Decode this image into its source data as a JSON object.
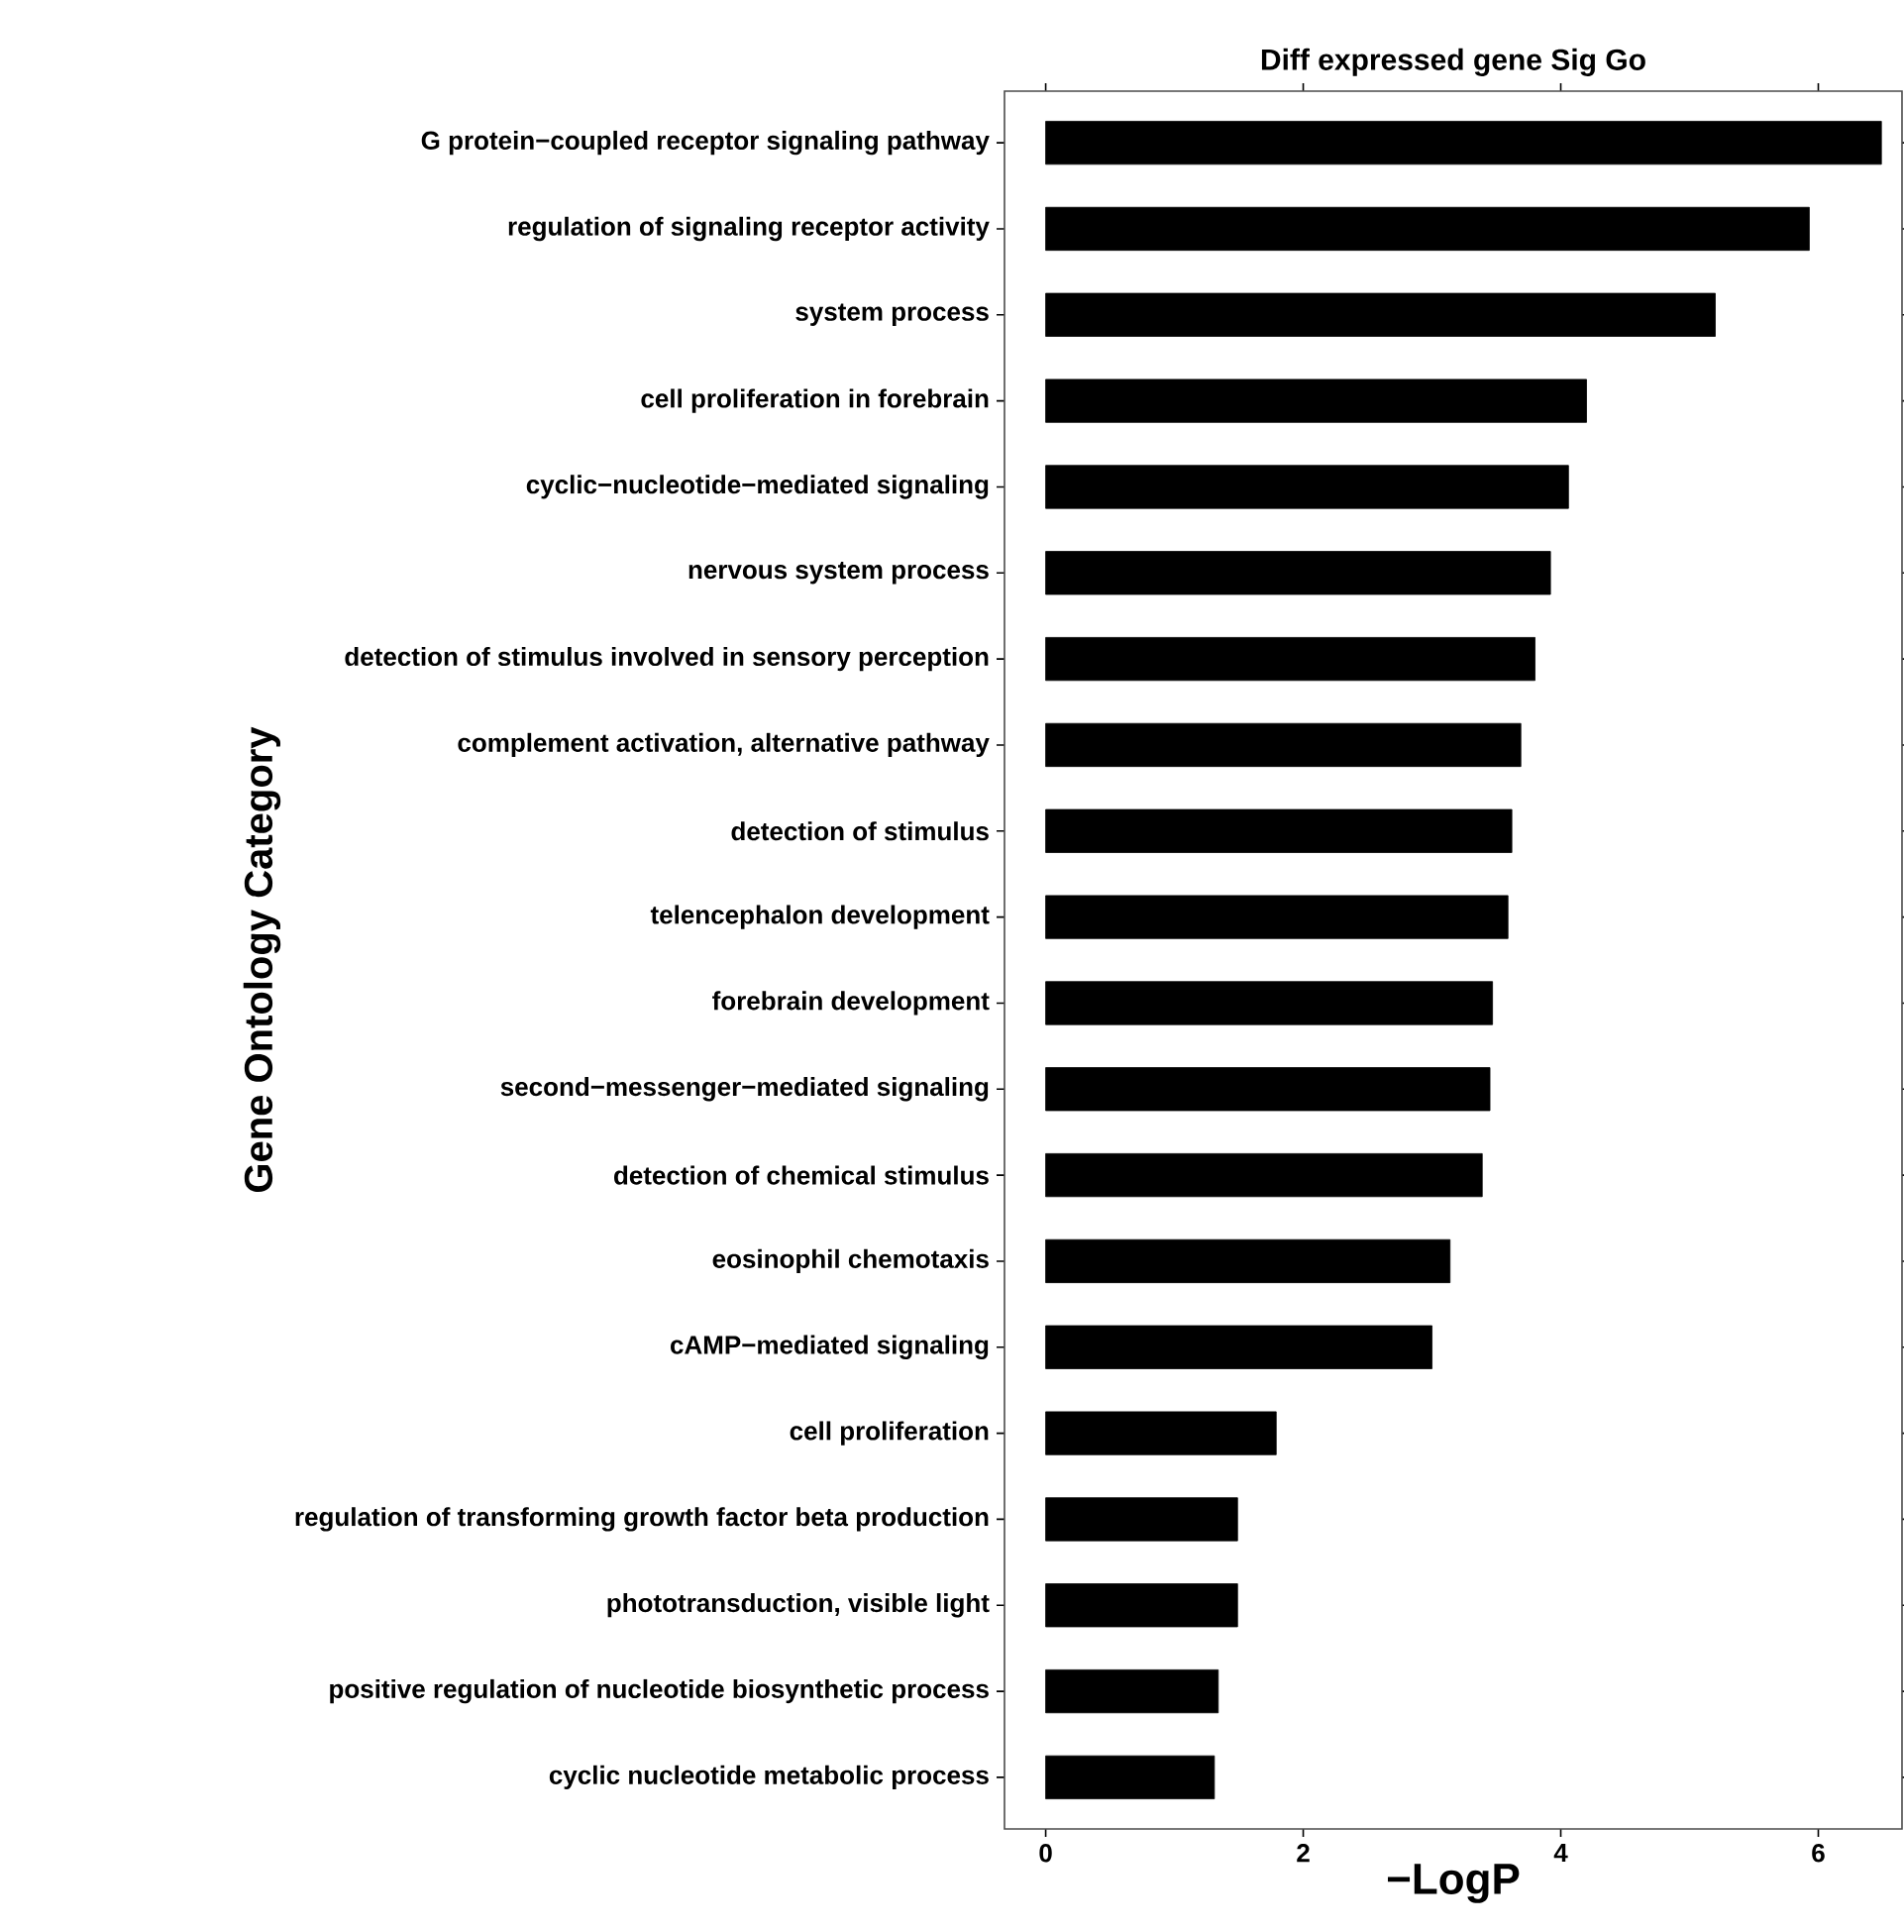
{
  "chart_data": {
    "type": "bar",
    "orientation": "horizontal",
    "title": "Diff expressed gene Sig Go",
    "xlabel": "−LogP",
    "ylabel": "Gene Ontology Category",
    "categories": [
      "G protein−coupled receptor signaling pathway",
      "regulation of signaling receptor activity",
      "system process",
      "cell proliferation in forebrain",
      "cyclic−nucleotide−mediated signaling",
      "nervous system process",
      "detection of stimulus involved in sensory perception",
      "complement activation, alternative pathway",
      "detection of stimulus",
      "telencephalon development",
      "forebrain development",
      "second−messenger−mediated signaling",
      "detection of chemical stimulus",
      "eosinophil chemotaxis",
      "cAMP−mediated signaling",
      "cell proliferation",
      "regulation of transforming growth factor beta production",
      "phototransduction, visible light",
      "positive regulation of nucleotide biosynthetic process",
      "cyclic nucleotide metabolic process"
    ],
    "values": [
      6.49,
      5.93,
      5.2,
      4.2,
      4.06,
      3.92,
      3.8,
      3.69,
      3.62,
      3.59,
      3.47,
      3.45,
      3.39,
      3.14,
      3.0,
      1.79,
      1.49,
      1.49,
      1.34,
      1.31
    ],
    "color": "#000000",
    "xlim": [
      -0.32,
      6.65
    ],
    "xticks": [
      0,
      2,
      4,
      6
    ]
  }
}
